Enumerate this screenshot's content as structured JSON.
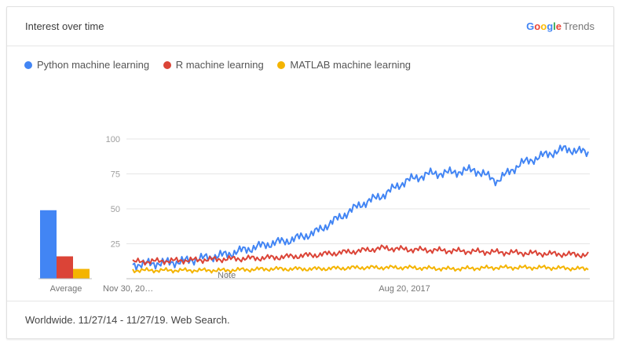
{
  "card": {
    "title": "Interest over time",
    "brand": {
      "letters": [
        "G",
        "o",
        "o",
        "g",
        "l",
        "e"
      ],
      "letter_colors": [
        "#4285f4",
        "#ea4335",
        "#fbbc05",
        "#4285f4",
        "#34a853",
        "#ea4335"
      ],
      "trends": "Trends"
    },
    "footer": "Worldwide. 11/27/14 - 11/27/19. Web Search."
  },
  "chart_data": {
    "type": "line",
    "x_tick_labels": [
      "Nov 30, 20…",
      "Aug 20, 2017"
    ],
    "y_ticks": [
      25,
      50,
      75,
      100
    ],
    "ylim": [
      0,
      100
    ],
    "note_label": "Note",
    "average_label": "Average",
    "series": [
      {
        "name": "Python machine learning",
        "color": "#4285f4",
        "average": 49,
        "keypoints": [
          [
            0,
            10
          ],
          [
            0.1,
            12
          ],
          [
            0.2,
            17
          ],
          [
            0.3,
            25
          ],
          [
            0.35,
            28
          ],
          [
            0.4,
            33
          ],
          [
            0.45,
            43
          ],
          [
            0.5,
            53
          ],
          [
            0.55,
            60
          ],
          [
            0.6,
            70
          ],
          [
            0.65,
            75
          ],
          [
            0.7,
            76
          ],
          [
            0.75,
            78
          ],
          [
            0.8,
            70
          ],
          [
            0.85,
            82
          ],
          [
            0.9,
            88
          ],
          [
            0.95,
            93
          ],
          [
            1,
            90
          ]
        ]
      },
      {
        "name": "R machine learning",
        "color": "#db4437",
        "average": 16,
        "keypoints": [
          [
            0,
            12
          ],
          [
            0.1,
            13
          ],
          [
            0.2,
            14
          ],
          [
            0.3,
            15
          ],
          [
            0.4,
            17
          ],
          [
            0.5,
            20
          ],
          [
            0.55,
            22
          ],
          [
            0.6,
            21
          ],
          [
            0.7,
            20
          ],
          [
            0.8,
            19
          ],
          [
            0.9,
            18
          ],
          [
            1,
            17
          ]
        ]
      },
      {
        "name": "MATLAB machine learning",
        "color": "#f4b400",
        "average": 7,
        "keypoints": [
          [
            0,
            6
          ],
          [
            0.2,
            6
          ],
          [
            0.3,
            7
          ],
          [
            0.4,
            7
          ],
          [
            0.5,
            8
          ],
          [
            0.6,
            8
          ],
          [
            0.7,
            7
          ],
          [
            0.8,
            8
          ],
          [
            0.9,
            8
          ],
          [
            1,
            7
          ]
        ]
      }
    ]
  }
}
